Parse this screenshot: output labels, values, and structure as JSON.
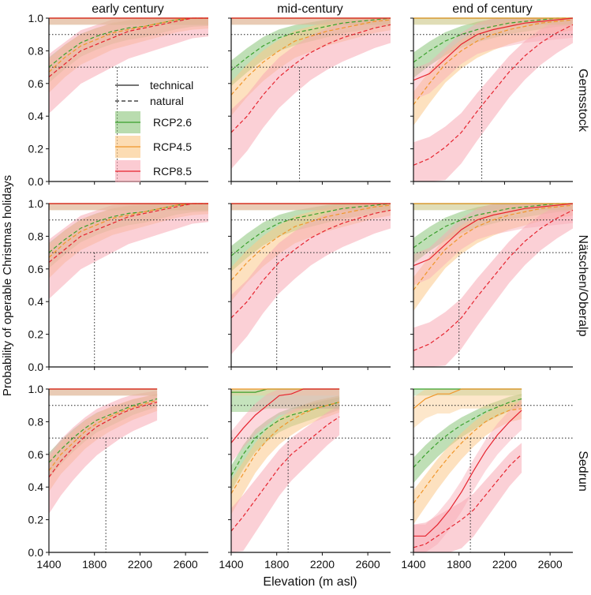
{
  "title": "Probability of operable Christmas holidays",
  "xlabel": "Elevation (m asl)",
  "ylabel": "Probability of operable Christmas holidays",
  "columns": [
    "early century",
    "mid-century",
    "end of century"
  ],
  "rows": [
    "Gemsstock",
    "Nätschen/Oberalp",
    "Sedrun"
  ],
  "legend": {
    "technical": "technical",
    "natural": "natural",
    "scenarios": [
      "RCP2.6",
      "RCP4.5",
      "RCP8.5"
    ]
  },
  "colors": {
    "RCP2.6": "#3aa02c",
    "RCP4.5": "#f0962a",
    "RCP8.5": "#e6232e",
    "band_RCP2.6": "#7fc06d",
    "band_RCP4.5": "#fbc98b",
    "band_RCP8.5": "#f8a9b4"
  },
  "chart_data": {
    "type": "line",
    "layout": "3x3 small multiples",
    "xlim": [
      1400,
      2800
    ],
    "ylim": [
      0,
      1
    ],
    "xticks": [
      "1400",
      "1800",
      "2200",
      "2600"
    ],
    "yticks": [
      "0.0",
      "0.2",
      "0.4",
      "0.6",
      "0.8",
      "1.0"
    ],
    "reference_lines_y": [
      0.7,
      0.9
    ],
    "panels": [
      {
        "row": "Gemsstock",
        "col": "early century",
        "x_end": 2800,
        "vline": 2000,
        "natural": {
          "RCP2.6": [
            0.7,
            0.78,
            0.85,
            0.89,
            0.92,
            0.94,
            0.95,
            0.97,
            0.99,
            1.0,
            1.0
          ],
          "RCP4.5": [
            0.67,
            0.76,
            0.83,
            0.87,
            0.91,
            0.93,
            0.95,
            0.97,
            0.99,
            1.0,
            1.0
          ],
          "RCP8.5": [
            0.64,
            0.72,
            0.8,
            0.84,
            0.88,
            0.92,
            0.94,
            0.96,
            0.98,
            1.0,
            1.0
          ]
        },
        "technical": {
          "RCP2.6": [
            1.0,
            1.0
          ],
          "RCP4.5": [
            1.0,
            1.0
          ],
          "RCP8.5": [
            1.0,
            1.0
          ]
        }
      },
      {
        "row": "Gemsstock",
        "col": "mid-century",
        "x_end": 2800,
        "vline": 2000,
        "natural": {
          "RCP2.6": [
            0.68,
            0.76,
            0.83,
            0.88,
            0.91,
            0.93,
            0.95,
            0.97,
            0.98,
            0.99,
            1.0
          ],
          "RCP4.5": [
            0.53,
            0.64,
            0.73,
            0.8,
            0.86,
            0.89,
            0.92,
            0.94,
            0.96,
            0.98,
            0.99
          ],
          "RCP8.5": [
            0.3,
            0.4,
            0.53,
            0.64,
            0.72,
            0.79,
            0.84,
            0.88,
            0.91,
            0.94,
            0.96
          ]
        },
        "technical": {
          "RCP2.6": [
            1.0,
            1.0
          ],
          "RCP4.5": [
            1.0,
            1.0
          ],
          "RCP8.5": [
            1.0,
            1.0
          ]
        }
      },
      {
        "row": "Gemsstock",
        "col": "end of century",
        "x_end": 2800,
        "vline": 2000,
        "natural": {
          "RCP2.6": [
            0.73,
            0.8,
            0.86,
            0.9,
            0.93,
            0.95,
            0.97,
            0.98,
            0.99,
            1.0,
            1.0
          ],
          "RCP4.5": [
            0.47,
            0.6,
            0.72,
            0.8,
            0.86,
            0.9,
            0.93,
            0.95,
            0.97,
            0.98,
            0.99
          ],
          "RCP8.5": [
            0.1,
            0.14,
            0.21,
            0.3,
            0.43,
            0.55,
            0.67,
            0.77,
            0.85,
            0.91,
            0.96
          ]
        },
        "technical": {
          "RCP2.6": [
            1.0,
            1.0
          ],
          "RCP4.5": [
            1.0,
            1.0
          ],
          "RCP8.5": [
            0.62,
            0.66,
            0.75,
            0.84,
            0.9,
            0.93,
            0.95,
            0.97,
            0.98,
            0.99,
            1.0
          ]
        }
      },
      {
        "row": "Nätschen/Oberalp",
        "col": "early century",
        "x_end": 2800,
        "vline": 1800,
        "natural": {
          "RCP2.6": [
            0.7,
            0.78,
            0.85,
            0.89,
            0.92,
            0.94,
            0.95,
            0.97,
            0.99,
            1.0,
            1.0
          ],
          "RCP4.5": [
            0.67,
            0.76,
            0.83,
            0.87,
            0.91,
            0.93,
            0.95,
            0.97,
            0.99,
            1.0,
            1.0
          ],
          "RCP8.5": [
            0.64,
            0.72,
            0.8,
            0.84,
            0.88,
            0.92,
            0.94,
            0.96,
            0.98,
            1.0,
            1.0
          ]
        },
        "technical": {
          "RCP2.6": [
            1.0,
            1.0
          ],
          "RCP4.5": [
            1.0,
            1.0
          ],
          "RCP8.5": [
            1.0,
            1.0
          ]
        }
      },
      {
        "row": "Nätschen/Oberalp",
        "col": "mid-century",
        "x_end": 2800,
        "vline": 1800,
        "natural": {
          "RCP2.6": [
            0.68,
            0.76,
            0.83,
            0.88,
            0.91,
            0.93,
            0.95,
            0.97,
            0.98,
            0.99,
            1.0
          ],
          "RCP4.5": [
            0.53,
            0.64,
            0.73,
            0.8,
            0.86,
            0.89,
            0.92,
            0.94,
            0.96,
            0.98,
            0.99
          ],
          "RCP8.5": [
            0.3,
            0.4,
            0.53,
            0.64,
            0.72,
            0.79,
            0.84,
            0.88,
            0.91,
            0.94,
            0.96
          ]
        },
        "technical": {
          "RCP2.6": [
            1.0,
            1.0
          ],
          "RCP4.5": [
            1.0,
            1.0
          ],
          "RCP8.5": [
            1.0,
            1.0
          ]
        }
      },
      {
        "row": "Nätschen/Oberalp",
        "col": "end of century",
        "x_end": 2800,
        "vline": 1800,
        "natural": {
          "RCP2.6": [
            0.73,
            0.8,
            0.86,
            0.9,
            0.93,
            0.95,
            0.97,
            0.98,
            0.99,
            1.0,
            1.0
          ],
          "RCP4.5": [
            0.47,
            0.6,
            0.72,
            0.8,
            0.86,
            0.9,
            0.93,
            0.95,
            0.97,
            0.98,
            0.99
          ],
          "RCP8.5": [
            0.1,
            0.14,
            0.21,
            0.3,
            0.43,
            0.55,
            0.67,
            0.77,
            0.85,
            0.91,
            0.96
          ]
        },
        "technical": {
          "RCP2.6": [
            1.0,
            1.0
          ],
          "RCP4.5": [
            1.0,
            1.0
          ],
          "RCP8.5": [
            0.62,
            0.66,
            0.75,
            0.84,
            0.9,
            0.93,
            0.95,
            0.97,
            0.98,
            0.99,
            1.0
          ]
        }
      },
      {
        "row": "Sedrun",
        "col": "early century",
        "x_end": 2350,
        "vline": 1900,
        "natural": {
          "RCP2.6": [
            0.55,
            0.63,
            0.7,
            0.76,
            0.81,
            0.84,
            0.87,
            0.9,
            0.92,
            0.94
          ],
          "RCP4.5": [
            0.5,
            0.6,
            0.67,
            0.74,
            0.79,
            0.83,
            0.86,
            0.89,
            0.91,
            0.93
          ],
          "RCP8.5": [
            0.46,
            0.56,
            0.64,
            0.71,
            0.77,
            0.81,
            0.85,
            0.88,
            0.9,
            0.92
          ]
        },
        "technical": {
          "RCP2.6": [
            1.0,
            1.0
          ],
          "RCP4.5": [
            1.0,
            1.0
          ],
          "RCP8.5": [
            1.0,
            1.0
          ]
        }
      },
      {
        "row": "Sedrun",
        "col": "mid-century",
        "x_end": 2350,
        "vline": 1900,
        "natural": {
          "RCP2.6": [
            0.47,
            0.6,
            0.7,
            0.76,
            0.81,
            0.84,
            0.86,
            0.88,
            0.9,
            0.92
          ],
          "RCP4.5": [
            0.36,
            0.48,
            0.6,
            0.69,
            0.76,
            0.81,
            0.85,
            0.88,
            0.9,
            0.92
          ],
          "RCP8.5": [
            0.13,
            0.22,
            0.32,
            0.42,
            0.52,
            0.6,
            0.66,
            0.72,
            0.78,
            0.83
          ]
        },
        "technical": {
          "RCP2.6": [
            0.98,
            0.98,
            0.98,
            1.0,
            1.0,
            1.0,
            1.0,
            1.0,
            1.0,
            1.0
          ],
          "RCP4.5": [
            1.0,
            1.0
          ],
          "RCP8.5": [
            0.67,
            0.76,
            0.84,
            0.9,
            0.96,
            0.97,
            1.0,
            1.0,
            1.0,
            1.0
          ]
        }
      },
      {
        "row": "Sedrun",
        "col": "end of century",
        "x_end": 2350,
        "vline": 1900,
        "natural": {
          "RCP2.6": [
            0.52,
            0.6,
            0.67,
            0.73,
            0.78,
            0.82,
            0.86,
            0.89,
            0.92,
            0.94
          ],
          "RCP4.5": [
            0.3,
            0.4,
            0.5,
            0.59,
            0.67,
            0.74,
            0.8,
            0.84,
            0.87,
            0.88
          ],
          "RCP8.5": [
            0.03,
            0.05,
            0.1,
            0.15,
            0.2,
            0.26,
            0.35,
            0.44,
            0.53,
            0.6
          ]
        },
        "technical": {
          "RCP2.6": [
            1.0,
            1.0
          ],
          "RCP4.5": [
            0.88,
            0.94,
            0.97,
            0.97,
            1.0,
            1.0,
            1.0,
            1.0,
            1.0,
            1.0
          ],
          "RCP8.5": [
            0.1,
            0.1,
            0.17,
            0.26,
            0.37,
            0.5,
            0.62,
            0.72,
            0.8,
            0.87
          ]
        }
      }
    ]
  }
}
